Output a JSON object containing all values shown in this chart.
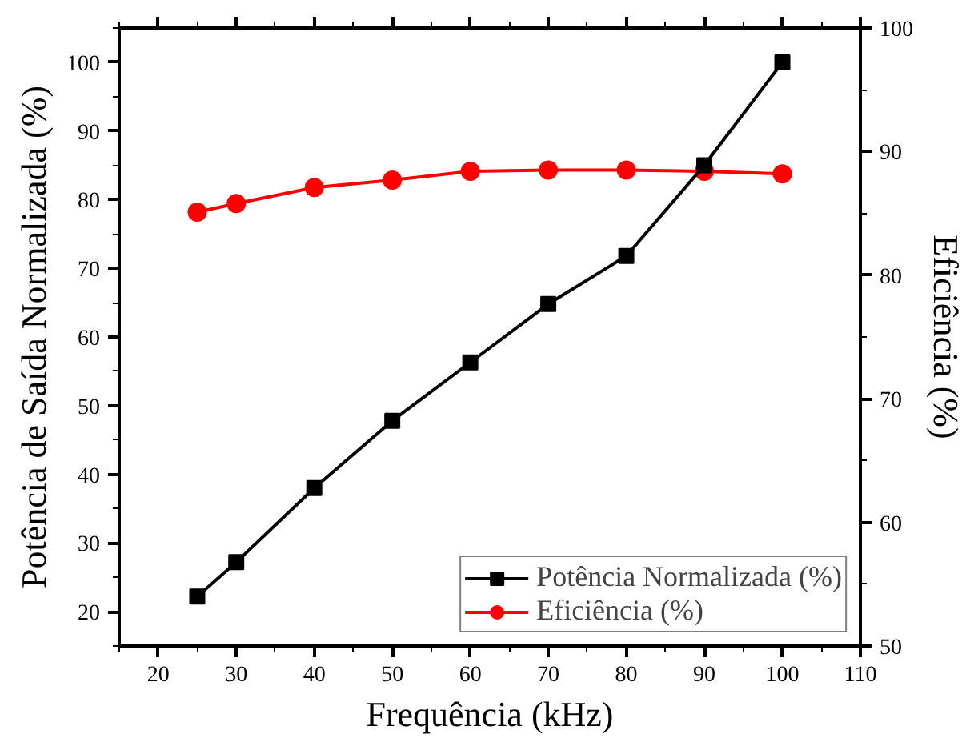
{
  "chart_data": {
    "type": "line",
    "xlabel": "Frequência (kHz)",
    "ylabel": "Potência de Saída Normalizada (%)",
    "y2label": "Eficiência (%)",
    "x": [
      25,
      30,
      40,
      50,
      60,
      70,
      80,
      90,
      100
    ],
    "series": [
      {
        "name": "Potência Normalizada (%)",
        "color": "#000000",
        "marker": "square",
        "values": [
          22.2,
          27.2,
          38,
          47.8,
          56.3,
          64.8,
          71.8,
          85,
          100
        ]
      },
      {
        "name": "Eficiência (%)",
        "color": "#ff0000",
        "marker": "circle",
        "axis": "y2",
        "values": [
          85.1,
          85.8,
          87.1,
          87.7,
          88.4,
          88.5,
          88.5,
          88.4,
          88.2
        ]
      }
    ],
    "xlim": [
      15,
      110
    ],
    "xticks": [
      20,
      30,
      40,
      50,
      60,
      70,
      80,
      90,
      100,
      110
    ],
    "ylim": [
      15,
      105
    ],
    "yticks": [
      20,
      30,
      40,
      50,
      60,
      70,
      80,
      90,
      100
    ],
    "y2lim": [
      50,
      100
    ],
    "y2ticks": [
      50,
      60,
      70,
      80,
      90,
      100
    ],
    "grid": false,
    "legend": "bottom right"
  }
}
